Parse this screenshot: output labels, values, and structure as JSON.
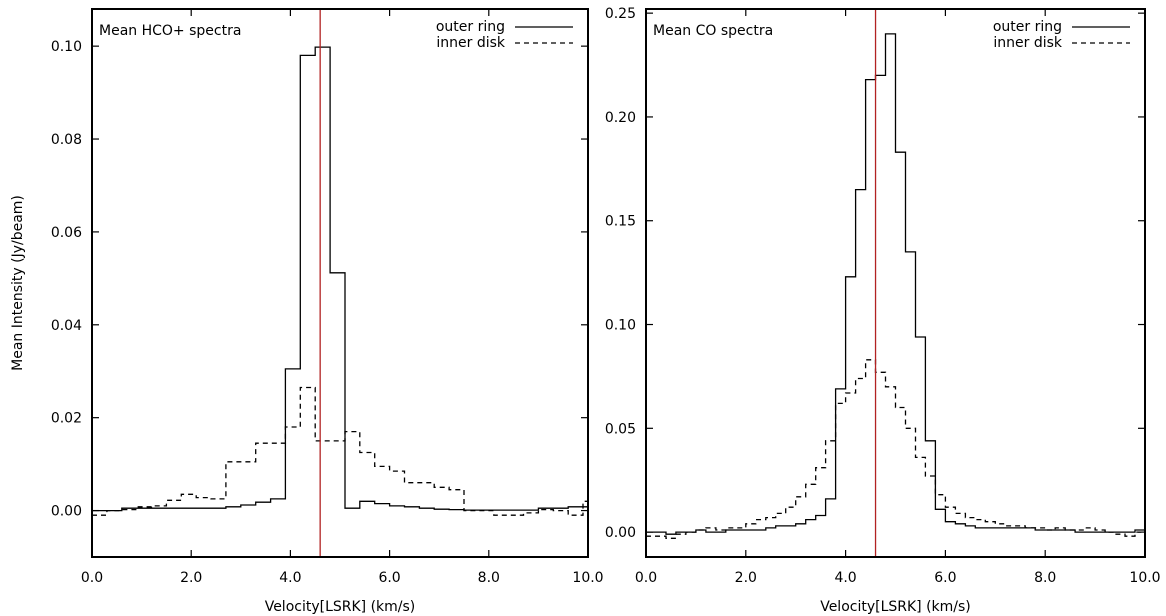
{
  "figure": {
    "shared_ylabel": "Mean Intensity (Jy/beam)"
  },
  "chart_data": [
    {
      "type": "line",
      "step": true,
      "title": "Mean HCO+ spectra",
      "xlabel": "Velocity[LSRK] (km/s)",
      "ylabel": "Mean Intensity (Jy/beam)",
      "xlim": [
        0,
        10
      ],
      "ylim": [
        -0.01,
        0.108
      ],
      "xticks": [
        0,
        2,
        4,
        6,
        8,
        10
      ],
      "xtick_labels": [
        "0.0",
        "2.0",
        "4.0",
        "6.0",
        "8.0",
        "10.0"
      ],
      "yticks": [
        0.0,
        0.02,
        0.04,
        0.06,
        0.08,
        0.1
      ],
      "ytick_labels": [
        "0.00",
        "0.02",
        "0.04",
        "0.06",
        "0.08",
        "0.10"
      ],
      "grid": false,
      "legend_position": "top-right",
      "reference_line": {
        "x": 4.6,
        "color": "#b22222"
      },
      "series": [
        {
          "name": "outer ring",
          "style": "solid",
          "x": [
            0.0,
            0.3,
            0.6,
            0.9,
            1.2,
            1.5,
            1.8,
            2.1,
            2.4,
            2.7,
            3.0,
            3.3,
            3.6,
            3.9,
            4.2,
            4.5,
            4.8,
            5.1,
            5.4,
            5.7,
            6.0,
            6.3,
            6.6,
            6.9,
            7.2,
            7.5,
            7.8,
            8.1,
            8.4,
            8.7,
            9.0,
            9.3,
            9.6,
            9.9
          ],
          "values": [
            0.0,
            0.0,
            0.0005,
            0.0005,
            0.0005,
            0.0005,
            0.0005,
            0.0005,
            0.0005,
            0.0008,
            0.0012,
            0.0018,
            0.0025,
            0.0305,
            0.098,
            0.0998,
            0.0512,
            0.0005,
            0.002,
            0.0015,
            0.001,
            0.0008,
            0.0005,
            0.0003,
            0.0002,
            0.0001,
            0.0001,
            0.0001,
            0.0001,
            0.0001,
            0.0005,
            0.0005,
            0.0008,
            0.0008
          ]
        },
        {
          "name": "inner disk",
          "style": "dashed",
          "x": [
            0.0,
            0.3,
            0.6,
            0.9,
            1.2,
            1.5,
            1.8,
            2.1,
            2.4,
            2.7,
            3.0,
            3.3,
            3.6,
            3.9,
            4.2,
            4.5,
            4.8,
            5.1,
            5.4,
            5.7,
            6.0,
            6.3,
            6.6,
            6.9,
            7.2,
            7.5,
            7.8,
            8.1,
            8.4,
            8.7,
            9.0,
            9.3,
            9.6,
            9.9
          ],
          "values": [
            -0.001,
            0.0,
            0.0002,
            0.0008,
            0.001,
            0.0022,
            0.0035,
            0.0028,
            0.0025,
            0.0105,
            0.0105,
            0.0145,
            0.0145,
            0.018,
            0.0265,
            0.015,
            0.015,
            0.017,
            0.0125,
            0.0095,
            0.0085,
            0.006,
            0.006,
            0.005,
            0.0045,
            0.0,
            0.0,
            -0.001,
            -0.001,
            -0.0005,
            0.0002,
            0.0,
            -0.001,
            0.002
          ]
        }
      ]
    },
    {
      "type": "line",
      "step": true,
      "title": "Mean CO spectra",
      "xlabel": "Velocity[LSRK] (km/s)",
      "ylabel": "",
      "xlim": [
        0,
        10
      ],
      "ylim": [
        -0.012,
        0.252
      ],
      "xticks": [
        0,
        2,
        4,
        6,
        8,
        10
      ],
      "xtick_labels": [
        "0.0",
        "2.0",
        "4.0",
        "6.0",
        "8.0",
        "10.0"
      ],
      "yticks": [
        0.0,
        0.05,
        0.1,
        0.15,
        0.2,
        0.25
      ],
      "ytick_labels": [
        "0.00",
        "0.05",
        "0.10",
        "0.15",
        "0.20",
        "0.25"
      ],
      "grid": false,
      "legend_position": "top-right",
      "reference_line": {
        "x": 4.6,
        "color": "#b22222"
      },
      "series": [
        {
          "name": "outer ring",
          "style": "solid",
          "x": [
            0.0,
            0.2,
            0.4,
            0.6,
            0.8,
            1.0,
            1.2,
            1.4,
            1.6,
            1.8,
            2.0,
            2.2,
            2.4,
            2.6,
            2.8,
            3.0,
            3.2,
            3.4,
            3.6,
            3.8,
            4.0,
            4.2,
            4.4,
            4.6,
            4.8,
            5.0,
            5.2,
            5.4,
            5.6,
            5.8,
            6.0,
            6.2,
            6.4,
            6.6,
            6.8,
            7.0,
            7.2,
            7.4,
            7.6,
            7.8,
            8.0,
            8.2,
            8.4,
            8.6,
            8.8,
            9.0,
            9.2,
            9.4,
            9.6,
            9.8
          ],
          "values": [
            0.0,
            0.0,
            -0.001,
            0.0,
            0.0,
            0.001,
            0.0,
            0.0,
            0.001,
            0.001,
            0.001,
            0.001,
            0.002,
            0.003,
            0.003,
            0.004,
            0.006,
            0.008,
            0.016,
            0.069,
            0.123,
            0.165,
            0.218,
            0.22,
            0.24,
            0.183,
            0.135,
            0.094,
            0.044,
            0.011,
            0.005,
            0.004,
            0.003,
            0.002,
            0.002,
            0.002,
            0.002,
            0.002,
            0.002,
            0.001,
            0.001,
            0.001,
            0.001,
            0.0,
            0.0,
            0.0,
            0.0,
            0.0,
            0.0,
            0.001
          ]
        },
        {
          "name": "inner disk",
          "style": "dashed",
          "x": [
            0.0,
            0.2,
            0.4,
            0.6,
            0.8,
            1.0,
            1.2,
            1.4,
            1.6,
            1.8,
            2.0,
            2.2,
            2.4,
            2.6,
            2.8,
            3.0,
            3.2,
            3.4,
            3.6,
            3.8,
            4.0,
            4.2,
            4.4,
            4.6,
            4.8,
            5.0,
            5.2,
            5.4,
            5.6,
            5.8,
            6.0,
            6.2,
            6.4,
            6.6,
            6.8,
            7.0,
            7.2,
            7.4,
            7.6,
            7.8,
            8.0,
            8.2,
            8.4,
            8.6,
            8.8,
            9.0,
            9.2,
            9.4,
            9.6,
            9.8
          ],
          "values": [
            -0.002,
            -0.002,
            -0.003,
            -0.001,
            0.0,
            0.001,
            0.002,
            0.001,
            0.002,
            0.002,
            0.004,
            0.006,
            0.007,
            0.009,
            0.012,
            0.017,
            0.023,
            0.031,
            0.044,
            0.062,
            0.067,
            0.074,
            0.083,
            0.077,
            0.07,
            0.06,
            0.05,
            0.036,
            0.027,
            0.018,
            0.012,
            0.009,
            0.007,
            0.006,
            0.005,
            0.004,
            0.003,
            0.003,
            0.002,
            0.002,
            0.001,
            0.002,
            0.001,
            0.001,
            0.002,
            0.001,
            0.0,
            -0.001,
            -0.002,
            0.0
          ]
        }
      ]
    }
  ]
}
